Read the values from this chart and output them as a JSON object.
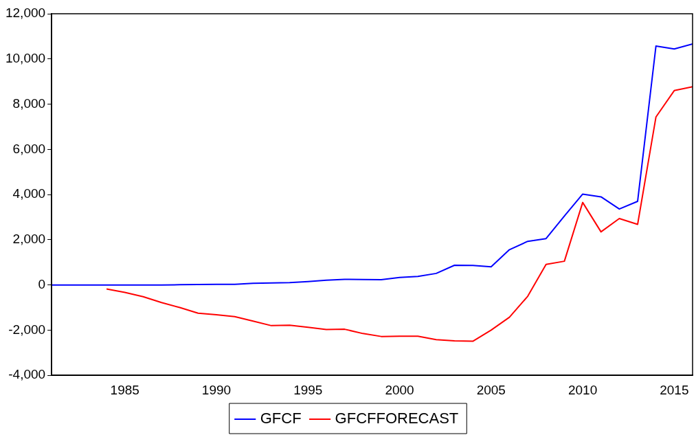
{
  "chart_data": {
    "type": "line",
    "x": [
      1981,
      1982,
      1983,
      1984,
      1985,
      1986,
      1987,
      1988,
      1989,
      1990,
      1991,
      1992,
      1993,
      1994,
      1995,
      1996,
      1997,
      1998,
      1999,
      2000,
      2001,
      2002,
      2003,
      2004,
      2005,
      2006,
      2007,
      2008,
      2009,
      2010,
      2011,
      2012,
      2013,
      2014,
      2015,
      2016
    ],
    "series": [
      {
        "name": "GFCF",
        "color": "#0000ff",
        "values": [
          0,
          0,
          0,
          0,
          0,
          0,
          0,
          10,
          20,
          30,
          30,
          70,
          90,
          100,
          150,
          210,
          250,
          240,
          230,
          330,
          380,
          510,
          870,
          860,
          800,
          1560,
          1930,
          2050,
          3050,
          4020,
          3900,
          3360,
          3700,
          10570,
          10440,
          10660
        ]
      },
      {
        "name": "GFCFFORECAST",
        "color": "#ff0000",
        "values": [
          null,
          null,
          null,
          -180,
          -330,
          -520,
          -780,
          -1000,
          -1250,
          -1320,
          -1400,
          -1600,
          -1800,
          -1780,
          -1870,
          -1970,
          -1960,
          -2150,
          -2280,
          -2270,
          -2270,
          -2420,
          -2470,
          -2490,
          -2000,
          -1430,
          -500,
          910,
          1050,
          3650,
          2350,
          2940,
          2680,
          7430,
          8600,
          8770
        ]
      }
    ],
    "xlim": [
      1981,
      2016
    ],
    "xticks": [
      1985,
      1990,
      1995,
      2000,
      2005,
      2010,
      2015
    ],
    "ylim": [
      -4000,
      12000
    ],
    "yticks": [
      {
        "value": -4000,
        "label": "-4,000"
      },
      {
        "value": -2000,
        "label": "-2,000"
      },
      0,
      {
        "value": 2000,
        "label": "2,000"
      },
      {
        "value": 4000,
        "label": "4,000"
      },
      {
        "value": 6000,
        "label": "6,000"
      },
      {
        "value": 8000,
        "label": "8,000"
      },
      {
        "value": 10000,
        "label": "10,000"
      },
      {
        "value": 12000,
        "label": "12,000"
      }
    ],
    "grid": false,
    "legend": "bottom",
    "marker": "none",
    "line_style": "solid"
  }
}
